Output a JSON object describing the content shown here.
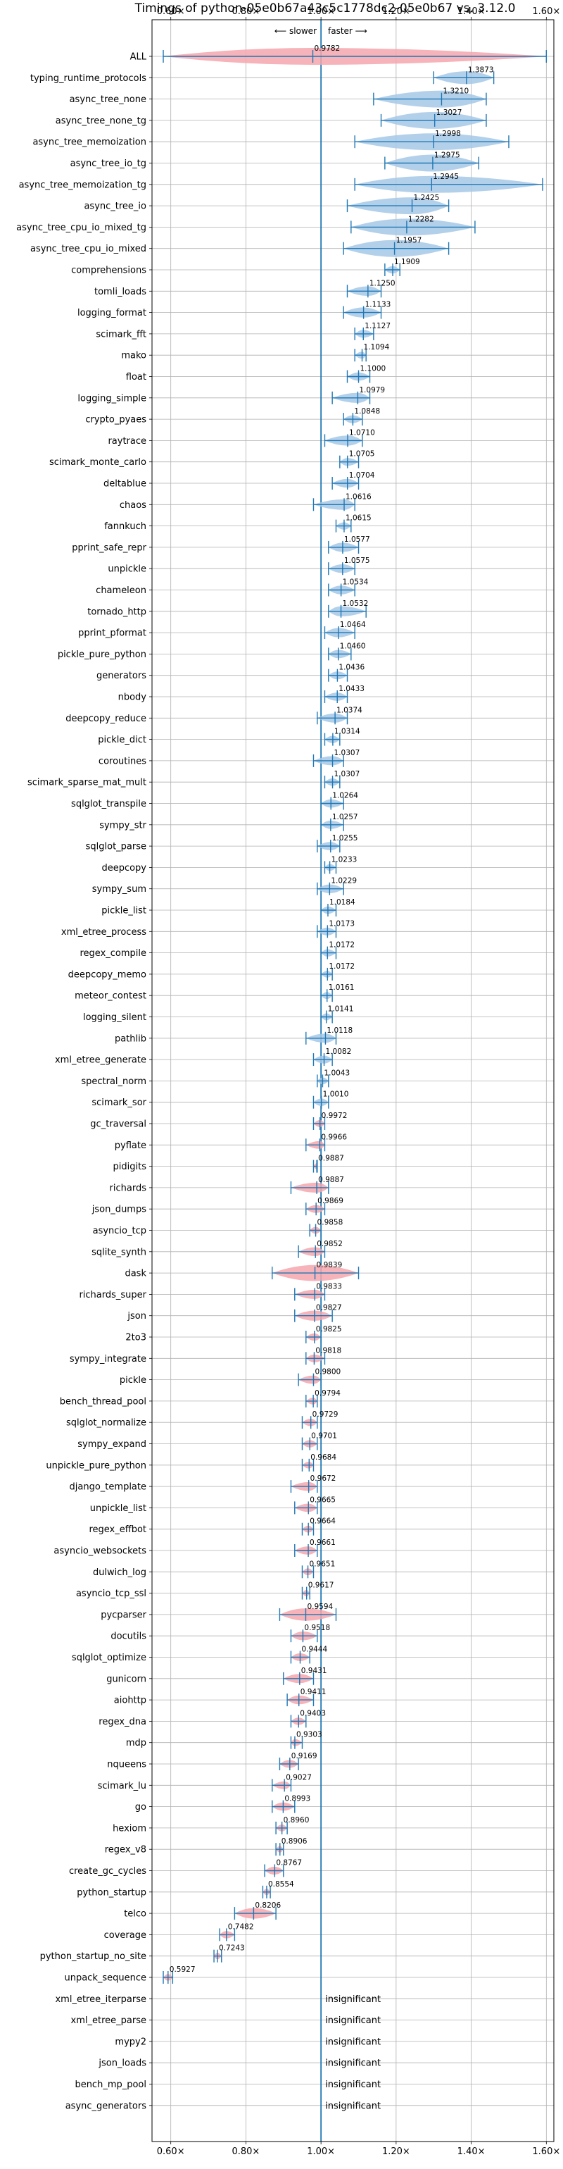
{
  "chart_data": {
    "type": "violin",
    "title": "Timings of python-05e0b67a43c5c1778dc2-05e0b67 vs. 3.12.0",
    "annotation_slower": "⟵ slower",
    "annotation_faster": "faster ⟶",
    "xlim": [
      0.55,
      1.62
    ],
    "xticks": [
      0.6,
      0.8,
      1.0,
      1.2,
      1.4,
      1.6
    ],
    "xtick_labels": [
      "0.60×",
      "0.80×",
      "1.00×",
      "1.20×",
      "1.40×",
      "1.60×"
    ],
    "reference_line": 1.0,
    "grid": true,
    "colors": {
      "faster": "#a6c8e6",
      "slower": "#f4a6ad",
      "line": "#1f77b4"
    },
    "insignificant_text": "insignificant",
    "benchmarks": [
      {
        "name": "ALL",
        "mean": 0.9782,
        "min": 0.58,
        "max": 1.6,
        "label": "0.9782"
      },
      {
        "name": "typing_runtime_protocols",
        "mean": 1.3873,
        "min": 1.3,
        "max": 1.46,
        "label": "1.3873"
      },
      {
        "name": "async_tree_none",
        "mean": 1.321,
        "min": 1.14,
        "max": 1.44,
        "label": "1.3210"
      },
      {
        "name": "async_tree_none_tg",
        "mean": 1.3027,
        "min": 1.16,
        "max": 1.44,
        "label": "1.3027"
      },
      {
        "name": "async_tree_memoization",
        "mean": 1.2998,
        "min": 1.09,
        "max": 1.5,
        "label": "1.2998"
      },
      {
        "name": "async_tree_io_tg",
        "mean": 1.2975,
        "min": 1.17,
        "max": 1.42,
        "label": "1.2975"
      },
      {
        "name": "async_tree_memoization_tg",
        "mean": 1.2945,
        "min": 1.09,
        "max": 1.59,
        "label": "1.2945"
      },
      {
        "name": "async_tree_io",
        "mean": 1.2425,
        "min": 1.07,
        "max": 1.34,
        "label": "1.2425"
      },
      {
        "name": "async_tree_cpu_io_mixed_tg",
        "mean": 1.2282,
        "min": 1.08,
        "max": 1.41,
        "label": "1.2282"
      },
      {
        "name": "async_tree_cpu_io_mixed",
        "mean": 1.1957,
        "min": 1.06,
        "max": 1.34,
        "label": "1.1957"
      },
      {
        "name": "comprehensions",
        "mean": 1.1909,
        "min": 1.17,
        "max": 1.21,
        "label": "1.1909"
      },
      {
        "name": "tomli_loads",
        "mean": 1.125,
        "min": 1.07,
        "max": 1.16,
        "label": "1.1250"
      },
      {
        "name": "logging_format",
        "mean": 1.1133,
        "min": 1.06,
        "max": 1.16,
        "label": "1.1133"
      },
      {
        "name": "scimark_fft",
        "mean": 1.1127,
        "min": 1.09,
        "max": 1.14,
        "label": "1.1127"
      },
      {
        "name": "mako",
        "mean": 1.1094,
        "min": 1.09,
        "max": 1.12,
        "label": "1.1094"
      },
      {
        "name": "float",
        "mean": 1.1,
        "min": 1.07,
        "max": 1.13,
        "label": "1.1000"
      },
      {
        "name": "logging_simple",
        "mean": 1.0979,
        "min": 1.03,
        "max": 1.13,
        "label": "1.0979"
      },
      {
        "name": "crypto_pyaes",
        "mean": 1.0848,
        "min": 1.06,
        "max": 1.11,
        "label": "1.0848"
      },
      {
        "name": "raytrace",
        "mean": 1.071,
        "min": 1.01,
        "max": 1.11,
        "label": "1.0710"
      },
      {
        "name": "scimark_monte_carlo",
        "mean": 1.0705,
        "min": 1.05,
        "max": 1.1,
        "label": "1.0705"
      },
      {
        "name": "deltablue",
        "mean": 1.0704,
        "min": 1.03,
        "max": 1.1,
        "label": "1.0704"
      },
      {
        "name": "chaos",
        "mean": 1.0616,
        "min": 0.98,
        "max": 1.09,
        "label": "1.0616"
      },
      {
        "name": "fannkuch",
        "mean": 1.0615,
        "min": 1.04,
        "max": 1.08,
        "label": "1.0615"
      },
      {
        "name": "pprint_safe_repr",
        "mean": 1.0577,
        "min": 1.02,
        "max": 1.1,
        "label": "1.0577"
      },
      {
        "name": "unpickle",
        "mean": 1.0575,
        "min": 1.02,
        "max": 1.09,
        "label": "1.0575"
      },
      {
        "name": "chameleon",
        "mean": 1.0534,
        "min": 1.02,
        "max": 1.09,
        "label": "1.0534"
      },
      {
        "name": "tornado_http",
        "mean": 1.0532,
        "min": 1.02,
        "max": 1.12,
        "label": "1.0532"
      },
      {
        "name": "pprint_pformat",
        "mean": 1.0464,
        "min": 1.01,
        "max": 1.09,
        "label": "1.0464"
      },
      {
        "name": "pickle_pure_python",
        "mean": 1.046,
        "min": 1.02,
        "max": 1.08,
        "label": "1.0460"
      },
      {
        "name": "generators",
        "mean": 1.0436,
        "min": 1.02,
        "max": 1.07,
        "label": "1.0436"
      },
      {
        "name": "nbody",
        "mean": 1.0433,
        "min": 1.01,
        "max": 1.07,
        "label": "1.0433"
      },
      {
        "name": "deepcopy_reduce",
        "mean": 1.0374,
        "min": 0.99,
        "max": 1.07,
        "label": "1.0374"
      },
      {
        "name": "pickle_dict",
        "mean": 1.0314,
        "min": 1.01,
        "max": 1.05,
        "label": "1.0314"
      },
      {
        "name": "coroutines",
        "mean": 1.0307,
        "min": 0.98,
        "max": 1.06,
        "label": "1.0307"
      },
      {
        "name": "scimark_sparse_mat_mult",
        "mean": 1.0307,
        "min": 1.01,
        "max": 1.05,
        "label": "1.0307"
      },
      {
        "name": "sqlglot_transpile",
        "mean": 1.0264,
        "min": 1.0,
        "max": 1.06,
        "label": "1.0264"
      },
      {
        "name": "sympy_str",
        "mean": 1.0257,
        "min": 1.0,
        "max": 1.06,
        "label": "1.0257"
      },
      {
        "name": "sqlglot_parse",
        "mean": 1.0255,
        "min": 0.99,
        "max": 1.05,
        "label": "1.0255"
      },
      {
        "name": "deepcopy",
        "mean": 1.0233,
        "min": 1.01,
        "max": 1.04,
        "label": "1.0233"
      },
      {
        "name": "sympy_sum",
        "mean": 1.0229,
        "min": 0.99,
        "max": 1.06,
        "label": "1.0229"
      },
      {
        "name": "pickle_list",
        "mean": 1.0184,
        "min": 1.0,
        "max": 1.04,
        "label": "1.0184"
      },
      {
        "name": "xml_etree_process",
        "mean": 1.0173,
        "min": 0.99,
        "max": 1.04,
        "label": "1.0173"
      },
      {
        "name": "regex_compile",
        "mean": 1.0172,
        "min": 1.0,
        "max": 1.04,
        "label": "1.0172"
      },
      {
        "name": "deepcopy_memo",
        "mean": 1.0172,
        "min": 1.0,
        "max": 1.03,
        "label": "1.0172"
      },
      {
        "name": "meteor_contest",
        "mean": 1.0161,
        "min": 1.0,
        "max": 1.03,
        "label": "1.0161"
      },
      {
        "name": "logging_silent",
        "mean": 1.0141,
        "min": 1.0,
        "max": 1.03,
        "label": "1.0141"
      },
      {
        "name": "pathlib",
        "mean": 1.0118,
        "min": 0.96,
        "max": 1.04,
        "label": "1.0118"
      },
      {
        "name": "xml_etree_generate",
        "mean": 1.0082,
        "min": 0.98,
        "max": 1.03,
        "label": "1.0082"
      },
      {
        "name": "spectral_norm",
        "mean": 1.0043,
        "min": 0.99,
        "max": 1.02,
        "label": "1.0043"
      },
      {
        "name": "scimark_sor",
        "mean": 1.001,
        "min": 0.98,
        "max": 1.02,
        "label": "1.0010"
      },
      {
        "name": "gc_traversal",
        "mean": 0.9972,
        "min": 0.98,
        "max": 1.01,
        "label": "0.9972"
      },
      {
        "name": "pyflate",
        "mean": 0.9966,
        "min": 0.96,
        "max": 1.01,
        "label": "0.9966"
      },
      {
        "name": "pidigits",
        "mean": 0.9887,
        "min": 0.98,
        "max": 0.99,
        "label": "0.9887"
      },
      {
        "name": "richards",
        "mean": 0.9887,
        "min": 0.92,
        "max": 1.02,
        "label": "0.9887"
      },
      {
        "name": "json_dumps",
        "mean": 0.9869,
        "min": 0.96,
        "max": 1.01,
        "label": "0.9869"
      },
      {
        "name": "asyncio_tcp",
        "mean": 0.9858,
        "min": 0.97,
        "max": 1.0,
        "label": "0.9858"
      },
      {
        "name": "sqlite_synth",
        "mean": 0.9852,
        "min": 0.94,
        "max": 1.01,
        "label": "0.9852"
      },
      {
        "name": "dask",
        "mean": 0.9839,
        "min": 0.87,
        "max": 1.1,
        "label": "0.9839"
      },
      {
        "name": "richards_super",
        "mean": 0.9833,
        "min": 0.93,
        "max": 1.01,
        "label": "0.9833"
      },
      {
        "name": "json",
        "mean": 0.9827,
        "min": 0.93,
        "max": 1.03,
        "label": "0.9827"
      },
      {
        "name": "2to3",
        "mean": 0.9825,
        "min": 0.96,
        "max": 1.0,
        "label": "0.9825"
      },
      {
        "name": "sympy_integrate",
        "mean": 0.9818,
        "min": 0.96,
        "max": 1.01,
        "label": "0.9818"
      },
      {
        "name": "pickle",
        "mean": 0.98,
        "min": 0.94,
        "max": 1.0,
        "label": "0.9800"
      },
      {
        "name": "bench_thread_pool",
        "mean": 0.9794,
        "min": 0.96,
        "max": 0.99,
        "label": "0.9794"
      },
      {
        "name": "sqlglot_normalize",
        "mean": 0.9729,
        "min": 0.95,
        "max": 0.99,
        "label": "0.9729"
      },
      {
        "name": "sympy_expand",
        "mean": 0.9701,
        "min": 0.95,
        "max": 0.99,
        "label": "0.9701"
      },
      {
        "name": "unpickle_pure_python",
        "mean": 0.9684,
        "min": 0.95,
        "max": 0.98,
        "label": "0.9684"
      },
      {
        "name": "django_template",
        "mean": 0.9672,
        "min": 0.92,
        "max": 0.99,
        "label": "0.9672"
      },
      {
        "name": "unpickle_list",
        "mean": 0.9665,
        "min": 0.93,
        "max": 0.99,
        "label": "0.9665"
      },
      {
        "name": "regex_effbot",
        "mean": 0.9664,
        "min": 0.95,
        "max": 0.98,
        "label": "0.9664"
      },
      {
        "name": "asyncio_websockets",
        "mean": 0.9661,
        "min": 0.93,
        "max": 0.99,
        "label": "0.9661"
      },
      {
        "name": "dulwich_log",
        "mean": 0.9651,
        "min": 0.95,
        "max": 0.98,
        "label": "0.9651"
      },
      {
        "name": "asyncio_tcp_ssl",
        "mean": 0.9617,
        "min": 0.95,
        "max": 0.97,
        "label": "0.9617"
      },
      {
        "name": "pycparser",
        "mean": 0.9594,
        "min": 0.89,
        "max": 1.04,
        "label": "0.9594"
      },
      {
        "name": "docutils",
        "mean": 0.9518,
        "min": 0.92,
        "max": 0.99,
        "label": "0.9518"
      },
      {
        "name": "sqlglot_optimize",
        "mean": 0.9444,
        "min": 0.92,
        "max": 0.97,
        "label": "0.9444"
      },
      {
        "name": "gunicorn",
        "mean": 0.9431,
        "min": 0.9,
        "max": 0.98,
        "label": "0.9431"
      },
      {
        "name": "aiohttp",
        "mean": 0.9411,
        "min": 0.91,
        "max": 0.98,
        "label": "0.9411"
      },
      {
        "name": "regex_dna",
        "mean": 0.9403,
        "min": 0.92,
        "max": 0.96,
        "label": "0.9403"
      },
      {
        "name": "mdp",
        "mean": 0.9303,
        "min": 0.92,
        "max": 0.95,
        "label": "0.9303"
      },
      {
        "name": "nqueens",
        "mean": 0.9169,
        "min": 0.89,
        "max": 0.94,
        "label": "0.9169"
      },
      {
        "name": "scimark_lu",
        "mean": 0.9027,
        "min": 0.87,
        "max": 0.92,
        "label": "0.9027"
      },
      {
        "name": "go",
        "mean": 0.8993,
        "min": 0.87,
        "max": 0.93,
        "label": "0.8993"
      },
      {
        "name": "hexiom",
        "mean": 0.896,
        "min": 0.88,
        "max": 0.91,
        "label": "0.8960"
      },
      {
        "name": "regex_v8",
        "mean": 0.8906,
        "min": 0.88,
        "max": 0.9,
        "label": "0.8906"
      },
      {
        "name": "create_gc_cycles",
        "mean": 0.8767,
        "min": 0.85,
        "max": 0.9,
        "label": "0.8767"
      },
      {
        "name": "python_startup",
        "mean": 0.8554,
        "min": 0.845,
        "max": 0.865,
        "label": "0.8554"
      },
      {
        "name": "telco",
        "mean": 0.8206,
        "min": 0.77,
        "max": 0.88,
        "label": "0.8206"
      },
      {
        "name": "coverage",
        "mean": 0.7482,
        "min": 0.73,
        "max": 0.77,
        "label": "0.7482"
      },
      {
        "name": "python_startup_no_site",
        "mean": 0.7243,
        "min": 0.715,
        "max": 0.735,
        "label": "0.7243"
      },
      {
        "name": "unpack_sequence",
        "mean": 0.5927,
        "min": 0.58,
        "max": 0.605,
        "label": "0.5927"
      },
      {
        "name": "xml_etree_iterparse",
        "insignificant": true
      },
      {
        "name": "xml_etree_parse",
        "insignificant": true
      },
      {
        "name": "mypy2",
        "insignificant": true
      },
      {
        "name": "json_loads",
        "insignificant": true
      },
      {
        "name": "bench_mp_pool",
        "insignificant": true
      },
      {
        "name": "async_generators",
        "insignificant": true
      }
    ]
  }
}
